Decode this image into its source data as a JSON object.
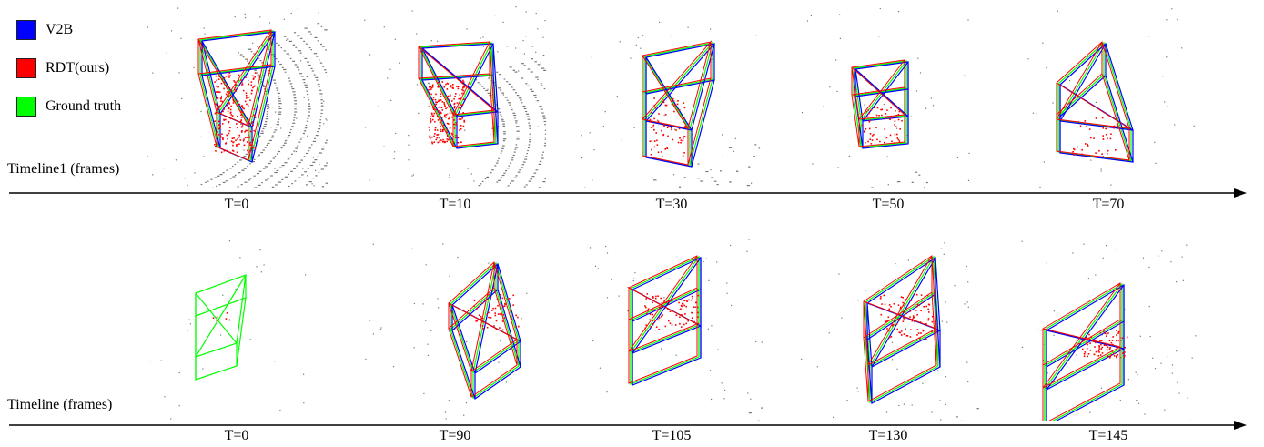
{
  "legend": [
    {
      "label": "V2B",
      "color": "#0000ff"
    },
    {
      "label": "RDT(ours)",
      "color": "#ff0000"
    },
    {
      "label": "Ground truth",
      "color": "#00ff00"
    }
  ],
  "timelines": [
    {
      "label": "Timeline1 (frames)",
      "frames": [
        "T=0",
        "T=10",
        "T=30",
        "T=50",
        "T=70"
      ]
    },
    {
      "label": "Timeline (frames)",
      "frames": [
        "T=0",
        "T=90",
        "T=105",
        "T=130",
        "T=145"
      ]
    }
  ]
}
